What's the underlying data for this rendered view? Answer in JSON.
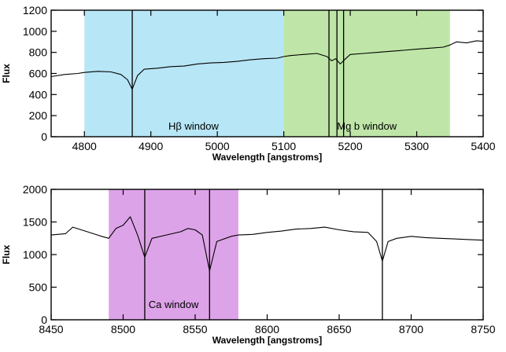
{
  "chart_data": [
    {
      "type": "line",
      "xlabel": "Wavelength [angstroms]",
      "ylabel": "Flux",
      "xlim": [
        4750,
        5400
      ],
      "ylim": [
        0,
        1200
      ],
      "xticks": [
        4800,
        4900,
        5000,
        5100,
        5200,
        5300,
        5400
      ],
      "yticks": [
        0,
        200,
        400,
        600,
        800,
        1000,
        1200
      ],
      "regions": [
        {
          "label": "Hβ window",
          "start": 4800,
          "end": 5100,
          "color": "#b7e6f6"
        },
        {
          "label": "Mg b window",
          "start": 5100,
          "end": 5350,
          "color": "#bfe6a8"
        }
      ],
      "vlines": [
        4872,
        5168,
        5180,
        5190
      ],
      "series": [
        {
          "x": [
            4750,
            4770,
            4790,
            4800,
            4820,
            4840,
            4855,
            4865,
            4872,
            4880,
            4890,
            4910,
            4930,
            4950,
            4970,
            4990,
            5010,
            5030,
            5050,
            5070,
            5090,
            5100,
            5110,
            5130,
            5150,
            5165,
            5172,
            5178,
            5185,
            5193,
            5200,
            5220,
            5240,
            5260,
            5280,
            5300,
            5320,
            5340,
            5350,
            5360,
            5375,
            5390,
            5400
          ],
          "y": [
            570,
            590,
            600,
            610,
            620,
            615,
            590,
            540,
            450,
            580,
            640,
            650,
            665,
            670,
            690,
            700,
            705,
            715,
            730,
            740,
            745,
            760,
            770,
            780,
            790,
            760,
            720,
            740,
            690,
            740,
            780,
            790,
            800,
            810,
            820,
            830,
            840,
            850,
            870,
            900,
            890,
            910,
            905
          ]
        }
      ]
    },
    {
      "type": "line",
      "xlabel": "Wavelength [angstroms]",
      "ylabel": "Flux",
      "xlim": [
        8450,
        8750
      ],
      "ylim": [
        0,
        2000
      ],
      "xticks": [
        8450,
        8500,
        8550,
        8600,
        8650,
        8700,
        8750
      ],
      "yticks": [
        0,
        500,
        1000,
        1500,
        2000
      ],
      "regions": [
        {
          "label": "Ca window",
          "start": 8490,
          "end": 8580,
          "color": "#dda3e8"
        }
      ],
      "vlines": [
        8515,
        8560,
        8680
      ],
      "series": [
        {
          "x": [
            8450,
            8460,
            8465,
            8475,
            8485,
            8490,
            8495,
            8500,
            8505,
            8510,
            8515,
            8520,
            8530,
            8540,
            8545,
            8550,
            8555,
            8560,
            8565,
            8575,
            8580,
            8590,
            8600,
            8610,
            8620,
            8630,
            8640,
            8650,
            8660,
            8670,
            8676,
            8680,
            8684,
            8690,
            8700,
            8710,
            8720,
            8730,
            8740,
            8750
          ],
          "y": [
            1300,
            1320,
            1420,
            1350,
            1280,
            1250,
            1400,
            1450,
            1580,
            1300,
            960,
            1250,
            1300,
            1350,
            1400,
            1380,
            1300,
            750,
            1200,
            1280,
            1300,
            1310,
            1340,
            1360,
            1390,
            1400,
            1420,
            1380,
            1350,
            1340,
            1200,
            900,
            1200,
            1250,
            1280,
            1260,
            1250,
            1240,
            1230,
            1220
          ]
        }
      ]
    }
  ]
}
